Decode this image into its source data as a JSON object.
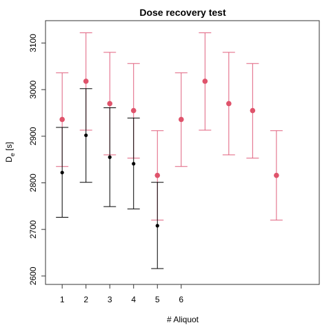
{
  "chart_data": {
    "type": "scatter",
    "title": "Dose recovery test",
    "xlabel": "# Aliquot",
    "ylabel": "De [s]",
    "ylabel_main": "D",
    "ylabel_sub": "e",
    "ylabel_unit": " [s]",
    "xlim": [
      0.3,
      11.8
    ],
    "ylim": [
      2582,
      3148
    ],
    "x_ticks": [
      1,
      2,
      3,
      4,
      5,
      6
    ],
    "y_ticks": [
      2600,
      2700,
      2800,
      2900,
      3000,
      3100
    ],
    "grid": false,
    "series": [
      {
        "color": "#e0607e",
        "marker_color": "#df536b",
        "marker": "circle-large",
        "points": [
          {
            "x": 1,
            "y": 2936,
            "lower": 2835,
            "upper": 3036
          },
          {
            "x": 2,
            "y": 3018,
            "lower": 2913,
            "upper": 3122
          },
          {
            "x": 3,
            "y": 2970,
            "lower": 2860,
            "upper": 3080
          },
          {
            "x": 4,
            "y": 2955,
            "lower": 2853,
            "upper": 3056
          },
          {
            "x": 5,
            "y": 2816,
            "lower": 2720,
            "upper": 2912
          },
          {
            "x": 6,
            "y": 2936,
            "lower": 2835,
            "upper": 3036
          },
          {
            "x": 7,
            "y": 3018,
            "lower": 2913,
            "upper": 3122
          },
          {
            "x": 8,
            "y": 2970,
            "lower": 2860,
            "upper": 3080
          },
          {
            "x": 9,
            "y": 2955,
            "lower": 2853,
            "upper": 3056
          },
          {
            "x": 10,
            "y": 2816,
            "lower": 2720,
            "upper": 2912
          }
        ]
      },
      {
        "color": "#000000",
        "marker_color": "#000000",
        "marker": "circle-small",
        "points": [
          {
            "x": 1,
            "y": 2822,
            "lower": 2726,
            "upper": 2919
          },
          {
            "x": 2,
            "y": 2902,
            "lower": 2801,
            "upper": 3002
          },
          {
            "x": 3,
            "y": 2855,
            "lower": 2749,
            "upper": 2961
          },
          {
            "x": 4,
            "y": 2841,
            "lower": 2744,
            "upper": 2939
          },
          {
            "x": 5,
            "y": 2708,
            "lower": 2616,
            "upper": 2801
          }
        ]
      }
    ]
  }
}
